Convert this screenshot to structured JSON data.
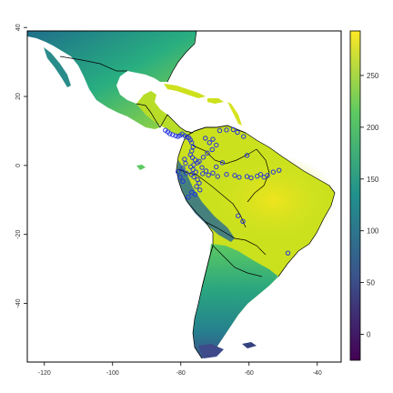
{
  "map": {
    "x_axis": {
      "ticks": [
        "-120",
        "-100",
        "-80",
        "-60",
        "-40"
      ]
    },
    "y_axis": {
      "ticks": [
        "40",
        "20",
        "0",
        "-20",
        "-40"
      ]
    },
    "legend": {
      "type": "continuous colorbar",
      "position": "right",
      "palette": "viridis",
      "ticks": [
        "0",
        "50",
        "100",
        "150",
        "200",
        "250"
      ],
      "range": [
        -25,
        293
      ]
    },
    "point_color": "#2233dd",
    "colors": {
      "viridis": [
        "#440154",
        "#3b528b",
        "#21908d",
        "#5dc962",
        "#fde725"
      ],
      "land_high": "#cde11d",
      "land_mid": "#6cc55a",
      "land_low": "#22908b",
      "border": "#000000"
    }
  },
  "chart_data": {
    "type": "raster map with occurrence points",
    "x": {
      "ticks": [
        -120,
        -100,
        -80,
        -60,
        -40
      ],
      "range": [
        -125,
        -33
      ]
    },
    "y": {
      "ticks": [
        40,
        20,
        0,
        -20,
        -40
      ],
      "range": [
        -57,
        39
      ]
    },
    "colorbar": {
      "ticks": [
        0,
        50,
        100,
        150,
        200,
        250
      ],
      "range": [
        -25,
        293
      ]
    },
    "points": [
      [
        -84.5,
        10.2
      ],
      [
        -83.8,
        9.7
      ],
      [
        -83.2,
        9.2
      ],
      [
        -82.4,
        8.9
      ],
      [
        -81.5,
        8.6
      ],
      [
        -80.8,
        8.4
      ],
      [
        -80.2,
        8.7
      ],
      [
        -79.6,
        9.1
      ],
      [
        -78.8,
        8.6
      ],
      [
        -78.2,
        8.2
      ],
      [
        -77.6,
        8.0
      ],
      [
        -77.2,
        7.4
      ],
      [
        -76.8,
        6.6
      ],
      [
        -76.4,
        5.4
      ],
      [
        -76.8,
        4.2
      ],
      [
        -77.2,
        3.1
      ],
      [
        -76.6,
        2.3
      ],
      [
        -75.8,
        1.6
      ],
      [
        -75.1,
        0.8
      ],
      [
        -76.2,
        0.2
      ],
      [
        -77.1,
        -0.4
      ],
      [
        -76.4,
        -1.2
      ],
      [
        -75.6,
        -1.9
      ],
      [
        -76.9,
        -2.6
      ],
      [
        -76.2,
        -3.3
      ],
      [
        -75.1,
        -4.1
      ],
      [
        -74.6,
        -5.1
      ],
      [
        -75.4,
        -6.1
      ],
      [
        -74.4,
        -7.1
      ],
      [
        -73.6,
        -2.4
      ],
      [
        -72.6,
        -1.6
      ],
      [
        -71.9,
        -2.8
      ],
      [
        -70.6,
        -2.2
      ],
      [
        -69.2,
        -3.2
      ],
      [
        -73.8,
        -0.6
      ],
      [
        -74.6,
        1.2
      ],
      [
        -73.4,
        2.4
      ],
      [
        -72.2,
        3.6
      ],
      [
        -70.8,
        4.6
      ],
      [
        -69.6,
        5.9
      ],
      [
        -71.6,
        6.6
      ],
      [
        -70.6,
        7.6
      ],
      [
        -72.8,
        7.9
      ],
      [
        -68.6,
        10.1
      ],
      [
        -66.6,
        10.3
      ],
      [
        -64.6,
        10.4
      ],
      [
        -63.4,
        9.6
      ],
      [
        -61.6,
        8.4
      ],
      [
        -69.6,
        -0.4
      ],
      [
        -67.8,
        0.8
      ],
      [
        -66.6,
        -2.6
      ],
      [
        -64.2,
        -2.9
      ],
      [
        -62.9,
        -3.4
      ],
      [
        -60.6,
        -3.2
      ],
      [
        -59.4,
        -3.6
      ],
      [
        -57.6,
        -3.1
      ],
      [
        -56.6,
        -2.6
      ],
      [
        -55.6,
        -3.4
      ],
      [
        -54.6,
        -2.9
      ],
      [
        -52.9,
        -1.9
      ],
      [
        -51.2,
        -1.4
      ],
      [
        -60.6,
        2.9
      ],
      [
        -63.2,
        -14.6
      ],
      [
        -61.8,
        -16.2
      ],
      [
        -48.6,
        -25.4
      ],
      [
        -80.8,
        -1.8
      ],
      [
        -80.2,
        -3.4
      ],
      [
        -79.4,
        -0.8
      ],
      [
        -78.6,
        0.6
      ],
      [
        -78.4,
        -2.2
      ],
      [
        -77.8,
        -9.2
      ],
      [
        -76.8,
        -7.8
      ],
      [
        -75.8,
        -8.4
      ],
      [
        -79.4,
        -4.6
      ],
      [
        -78.9,
        1.8
      ]
    ]
  }
}
